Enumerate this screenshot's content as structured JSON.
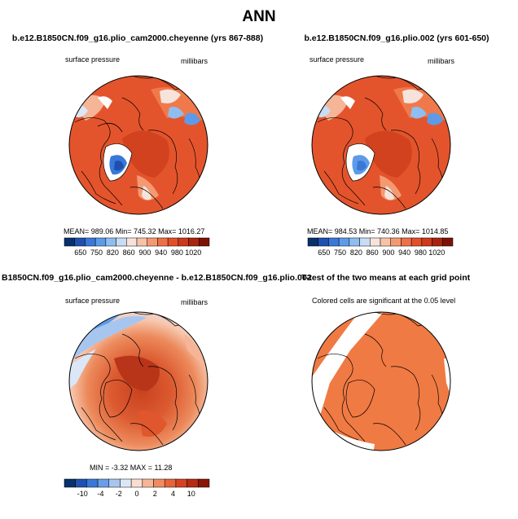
{
  "main_title": "ANN",
  "panels": [
    {
      "title": "b.e12.B1850CN.f09_g16.plio_cam2000.cheyenne (yrs 867-888)",
      "left_label": "surface pressure",
      "right_label": "millibars",
      "stats": "MEAN= 989.06   Min= 745.32   Max= 1016.27",
      "colorbar_labels": [
        "650",
        "750",
        "820",
        "860",
        "900",
        "940",
        "980",
        "1020"
      ]
    },
    {
      "title": "b.e12.B1850CN.f09_g16.plio.002 (yrs 601-650)",
      "left_label": "surface pressure",
      "right_label": "millibars",
      "stats": "MEAN= 984.53   Min= 740.36   Max= 1014.85",
      "colorbar_labels": [
        "650",
        "750",
        "820",
        "860",
        "900",
        "940",
        "980",
        "1020"
      ]
    },
    {
      "title": "B1850CN.f09_g16.plio_cam2000.cheyenne - b.e12.B1850CN.f09_g16.plio.002",
      "left_label": "surface pressure",
      "right_label": "millibars",
      "stats": "MIN =  -3.32  MAX =  11.28",
      "colorbar_labels": [
        "-10",
        "-4",
        "-2",
        "0",
        "2",
        "4",
        "10"
      ]
    },
    {
      "title": "T-test of the two means at each grid point",
      "left_label": "Colored cells are significant at the 0.05 level"
    }
  ],
  "colors": {
    "abs_ramp": [
      "#08306b",
      "#1f4fb0",
      "#3a78d8",
      "#5d9be8",
      "#8fbdf0",
      "#c8dcf4",
      "#f6e4dc",
      "#f8c2a8",
      "#f49a73",
      "#ee7048",
      "#e2502a",
      "#cc3a1c",
      "#a82410",
      "#7c1206"
    ],
    "diff_ramp": [
      "#08306b",
      "#1f4fb0",
      "#3a78d8",
      "#6a9ee6",
      "#a6c6f0",
      "#dbe7f6",
      "#f9ddd0",
      "#f6b597",
      "#f08a60",
      "#e6643a",
      "#d64220",
      "#b42a12",
      "#8a1506"
    ],
    "ttest_fill": "#f07a43"
  }
}
